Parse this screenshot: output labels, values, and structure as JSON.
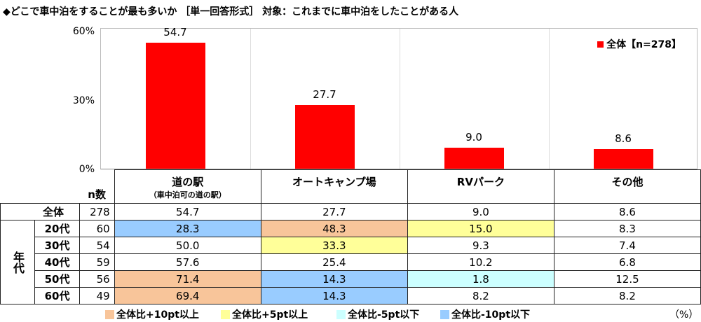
{
  "title": "◆どこで車中泊をすることが最も多いか ［単一回答形式］ 対象：これまでに車中泊をしたことがある人",
  "colors": {
    "bar": "#ff0000",
    "plus10": "#f8c59a",
    "plus5": "#ffff99",
    "minus5": "#ccffff",
    "minus10": "#99ccff"
  },
  "chart_data": {
    "type": "bar",
    "categories": [
      "道の駅",
      "オートキャンプ場",
      "RVパーク",
      "その他"
    ],
    "series": [
      {
        "name": "全体【n=278】",
        "values": [
          54.7,
          27.7,
          9.0,
          8.6
        ]
      }
    ],
    "data_labels": [
      "54.7",
      "27.7",
      "9.0",
      "8.6"
    ],
    "yticks": [
      "0%",
      "30%",
      "60%"
    ],
    "ylim": [
      0,
      60
    ],
    "legend": "top-right"
  },
  "table": {
    "n_header": "n数",
    "columns": [
      {
        "label": "道の駅",
        "sub": "（車中泊可の道の駅）"
      },
      {
        "label": "オートキャンプ場",
        "sub": ""
      },
      {
        "label": "RVパーク",
        "sub": ""
      },
      {
        "label": "その他",
        "sub": ""
      }
    ],
    "group_label": "年代",
    "rows": [
      {
        "label": "全体",
        "n": "278",
        "values": [
          "54.7",
          "27.7",
          "9.0",
          "8.6"
        ],
        "hl": [
          "",
          "",
          "",
          ""
        ]
      },
      {
        "label": "20代",
        "n": "60",
        "values": [
          "28.3",
          "48.3",
          "15.0",
          "8.3"
        ],
        "hl": [
          "minus10",
          "plus10",
          "plus5",
          ""
        ]
      },
      {
        "label": "30代",
        "n": "54",
        "values": [
          "50.0",
          "33.3",
          "9.3",
          "7.4"
        ],
        "hl": [
          "",
          "plus5",
          "",
          ""
        ]
      },
      {
        "label": "40代",
        "n": "59",
        "values": [
          "57.6",
          "25.4",
          "10.2",
          "6.8"
        ],
        "hl": [
          "",
          "",
          "",
          ""
        ]
      },
      {
        "label": "50代",
        "n": "56",
        "values": [
          "71.4",
          "14.3",
          "1.8",
          "12.5"
        ],
        "hl": [
          "plus10",
          "minus10",
          "minus5",
          ""
        ]
      },
      {
        "label": "60代",
        "n": "49",
        "values": [
          "69.4",
          "14.3",
          "8.2",
          "8.2"
        ],
        "hl": [
          "plus10",
          "minus10",
          "",
          ""
        ]
      }
    ]
  },
  "footer": {
    "legend": [
      {
        "key": "plus10",
        "label": "全体比+10pt以上"
      },
      {
        "key": "plus5",
        "label": "全体比+5pt以上"
      },
      {
        "key": "minus5",
        "label": "全体比-5pt以下"
      },
      {
        "key": "minus10",
        "label": "全体比-10pt以下"
      }
    ],
    "unit": "（%）"
  }
}
